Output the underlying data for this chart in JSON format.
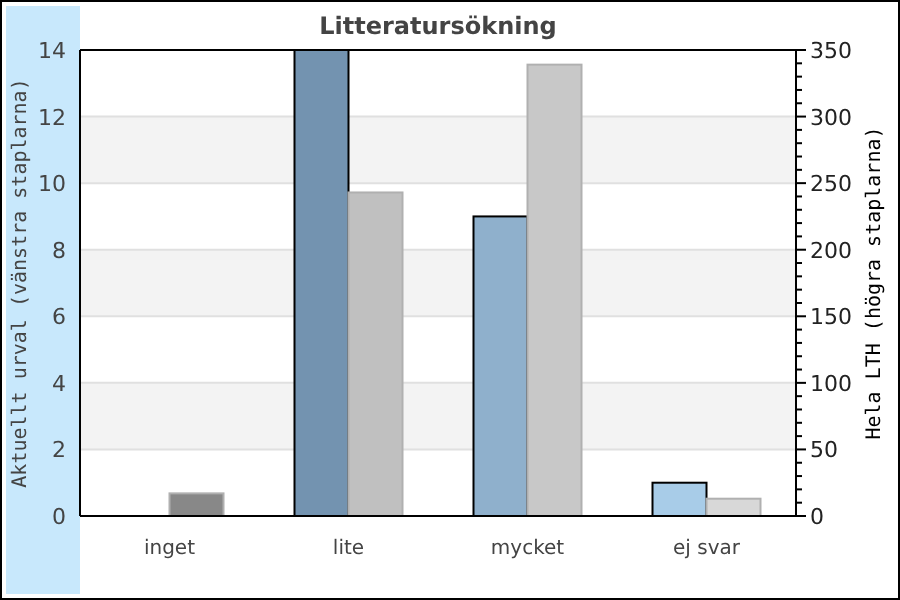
{
  "chart_data": {
    "type": "bar",
    "title": "Litteratursökning",
    "categories": [
      "inget",
      "lite",
      "mycket",
      "ej svar"
    ],
    "ylabel": "Aktuellt urval (vänstra staplarna)",
    "y2label": "Hela LTH (högra staplarna)",
    "ylim": [
      0,
      14
    ],
    "yticks": [
      0,
      2,
      4,
      6,
      8,
      10,
      12,
      14
    ],
    "y2lim": [
      0,
      350
    ],
    "y2ticks": [
      0,
      {
        "value": 10,
        "label": null
      },
      {
        "value": 20,
        "label": null
      },
      {
        "value": 30,
        "label": null
      },
      {
        "value": 40,
        "label": null
      },
      50,
      {
        "value": 60,
        "label": null
      },
      {
        "value": 70,
        "label": null
      },
      {
        "value": 80,
        "label": null
      },
      {
        "value": 90,
        "label": null
      },
      100,
      {
        "value": 110,
        "label": null
      },
      {
        "value": 120,
        "label": null
      },
      {
        "value": 130,
        "label": null
      },
      {
        "value": 140,
        "label": null
      },
      150,
      {
        "value": 160,
        "label": null
      },
      {
        "value": 170,
        "label": null
      },
      {
        "value": 180,
        "label": null
      },
      {
        "value": 190,
        "label": null
      },
      200,
      {
        "value": 210,
        "label": null
      },
      {
        "value": 220,
        "label": null
      },
      {
        "value": 230,
        "label": null
      },
      {
        "value": 240,
        "label": null
      },
      250,
      {
        "value": 260,
        "label": null
      },
      {
        "value": 270,
        "label": null
      },
      {
        "value": 280,
        "label": null
      },
      {
        "value": 290,
        "label": null
      },
      300,
      {
        "value": 310,
        "label": null
      },
      {
        "value": 320,
        "label": null
      },
      {
        "value": 330,
        "label": null
      },
      {
        "value": 340,
        "label": null
      },
      350
    ],
    "grid": "y",
    "series": [
      {
        "colors": [
          "#7393b0",
          "#7393b0",
          "#8fb0cc",
          "#a8cce8"
        ],
        "values": [
          0,
          14,
          9,
          1
        ]
      },
      {
        "axis": "y2",
        "colors": [
          "#888888",
          "#c0c0c0",
          "#c8c8c8",
          "#d8d8d8"
        ],
        "values": [
          17,
          243,
          339,
          13
        ]
      }
    ]
  }
}
